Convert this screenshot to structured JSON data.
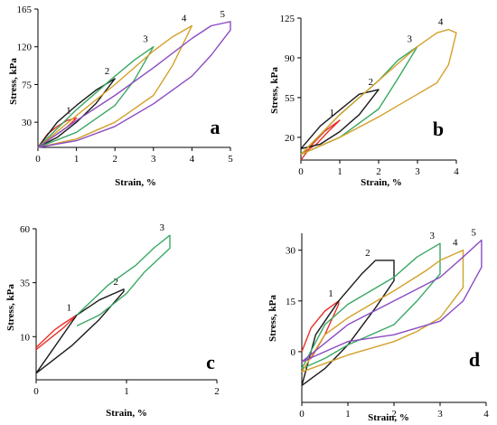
{
  "colors": {
    "1": "#e8312a",
    "2": "#1a1a1a",
    "3": "#3aa863",
    "4": "#d4a02a",
    "5": "#8a4cc2"
  },
  "chart_data": [
    {
      "panel": "a",
      "type": "line",
      "xlabel": "Strain, %",
      "ylabel": "Stress, kPa",
      "xlim": [
        0,
        5
      ],
      "ylim": [
        0,
        165
      ],
      "xticks": [
        "0",
        "1",
        "2",
        "3",
        "4",
        "5"
      ],
      "yticks": [
        "30",
        "75",
        "120",
        "165"
      ],
      "series": [
        {
          "name": "1",
          "load": [
            [
              0,
              0
            ],
            [
              0.25,
              16
            ],
            [
              0.5,
              25
            ],
            [
              0.75,
              32
            ],
            [
              1,
              35
            ]
          ],
          "unload": [
            [
              1,
              35
            ],
            [
              0.75,
              24
            ],
            [
              0.5,
              16
            ],
            [
              0.25,
              8
            ],
            [
              0,
              0
            ]
          ]
        },
        {
          "name": "2",
          "load": [
            [
              0,
              0
            ],
            [
              0.5,
              30
            ],
            [
              1,
              50
            ],
            [
              1.5,
              68
            ],
            [
              2,
              82
            ]
          ],
          "unload": [
            [
              2,
              82
            ],
            [
              1.5,
              52
            ],
            [
              1,
              30
            ],
            [
              0.5,
              12
            ],
            [
              0,
              0
            ]
          ]
        },
        {
          "name": "3",
          "load": [
            [
              0,
              0
            ],
            [
              1,
              45
            ],
            [
              2,
              85
            ],
            [
              2.5,
              104
            ],
            [
              3,
              120
            ]
          ],
          "unload": [
            [
              3,
              120
            ],
            [
              2.5,
              80
            ],
            [
              2,
              50
            ],
            [
              1,
              18
            ],
            [
              0,
              0
            ]
          ]
        },
        {
          "name": "4",
          "load": [
            [
              0,
              0
            ],
            [
              1,
              38
            ],
            [
              2,
              75
            ],
            [
              3,
              115
            ],
            [
              3.5,
              132
            ],
            [
              4,
              145
            ]
          ],
          "unload": [
            [
              4,
              145
            ],
            [
              3.5,
              98
            ],
            [
              3,
              62
            ],
            [
              2,
              30
            ],
            [
              1,
              10
            ],
            [
              0,
              0
            ]
          ]
        },
        {
          "name": "5",
          "load": [
            [
              0,
              0
            ],
            [
              1,
              32
            ],
            [
              2,
              62
            ],
            [
              3,
              95
            ],
            [
              4,
              130
            ],
            [
              4.5,
              145
            ],
            [
              5,
              150
            ]
          ],
          "unload": [
            [
              5,
              140
            ],
            [
              4.5,
              110
            ],
            [
              4,
              85
            ],
            [
              3,
              52
            ],
            [
              2,
              25
            ],
            [
              1,
              8
            ],
            [
              0,
              0
            ]
          ]
        }
      ]
    },
    {
      "panel": "b",
      "type": "line",
      "xlabel": "Strain, %",
      "ylabel": "Stress, kPa",
      "xlim": [
        0,
        4
      ],
      "ylim": [
        0,
        125
      ],
      "xticks": [
        "0",
        "1",
        "2",
        "3",
        "4"
      ],
      "yticks": [
        "20",
        "55",
        "90",
        "125"
      ],
      "series": [
        {
          "name": "1",
          "load": [
            [
              0,
              0
            ],
            [
              0.3,
              14
            ],
            [
              0.6,
              25
            ],
            [
              1,
              35
            ]
          ],
          "unload": [
            [
              1,
              35
            ],
            [
              0.7,
              25
            ],
            [
              0.4,
              14
            ],
            [
              0,
              5
            ]
          ]
        },
        {
          "name": "2",
          "load": [
            [
              0,
              10
            ],
            [
              0.5,
              30
            ],
            [
              1,
              44
            ],
            [
              1.5,
              58
            ],
            [
              2,
              62
            ]
          ],
          "unload": [
            [
              2,
              62
            ],
            [
              1.5,
              40
            ],
            [
              1,
              25
            ],
            [
              0.5,
              14
            ],
            [
              0,
              10
            ]
          ]
        },
        {
          "name": "3",
          "load": [
            [
              0,
              5
            ],
            [
              1,
              40
            ],
            [
              2,
              70
            ],
            [
              2.5,
              88
            ],
            [
              3,
              100
            ]
          ],
          "unload": [
            [
              3,
              100
            ],
            [
              2.5,
              72
            ],
            [
              2,
              45
            ],
            [
              1,
              20
            ],
            [
              0,
              5
            ]
          ]
        },
        {
          "name": "4",
          "load": [
            [
              0,
              5
            ],
            [
              1,
              40
            ],
            [
              2,
              70
            ],
            [
              3,
              100
            ],
            [
              3.5,
              112
            ],
            [
              3.8,
              115
            ],
            [
              4,
              112
            ]
          ],
          "unload": [
            [
              3.8,
              84
            ],
            [
              3.5,
              68
            ],
            [
              3,
              58
            ],
            [
              2.5,
              48
            ],
            [
              2,
              38
            ],
            [
              1,
              20
            ],
            [
              0,
              5
            ]
          ]
        }
      ]
    },
    {
      "panel": "c",
      "type": "line",
      "xlabel": "Strain, %",
      "ylabel": "Stress, kPa",
      "xlim": [
        0,
        2
      ],
      "ylim": [
        -10,
        60
      ],
      "xticks": [
        "0",
        "1",
        "2"
      ],
      "yticks": [
        "10",
        "35",
        "60"
      ],
      "series": [
        {
          "name": "1",
          "load": [
            [
              0,
              5
            ],
            [
              0.1,
              9
            ],
            [
              0.2,
              13
            ],
            [
              0.3,
              16
            ],
            [
              0.45,
              20
            ]
          ],
          "unload": [
            [
              0.45,
              20
            ],
            [
              0.3,
              14
            ],
            [
              0.15,
              9
            ],
            [
              0,
              4
            ]
          ]
        },
        {
          "name": "2",
          "load": [
            [
              0,
              -7
            ],
            [
              0.45,
              20
            ],
            [
              0.7,
              27
            ],
            [
              0.97,
              32
            ]
          ],
          "unload": [
            [
              0.97,
              31
            ],
            [
              0.7,
              18
            ],
            [
              0.4,
              6
            ],
            [
              0,
              -7
            ]
          ]
        },
        {
          "name": "3",
          "load": [
            [
              0.45,
              20
            ],
            [
              0.8,
              34
            ],
            [
              1.1,
              43
            ],
            [
              1.3,
              51
            ],
            [
              1.48,
              57
            ]
          ],
          "unload": [
            [
              1.48,
              51
            ],
            [
              1.2,
              40
            ],
            [
              1,
              30
            ],
            [
              0.7,
              20
            ],
            [
              0.45,
              15
            ]
          ]
        }
      ]
    },
    {
      "panel": "d",
      "type": "line",
      "xlabel": "Strain, %",
      "ylabel": "Stress, kPa",
      "xlim": [
        0,
        4
      ],
      "ylim": [
        -15,
        35
      ],
      "xticks": [
        "0",
        "1",
        "2",
        "3",
        "4"
      ],
      "yticks": [
        "0",
        "15",
        "30"
      ],
      "series": [
        {
          "name": "1",
          "load": [
            [
              0,
              0
            ],
            [
              0.2,
              7
            ],
            [
              0.5,
              12
            ],
            [
              0.8,
              15
            ]
          ],
          "unload": [
            [
              0.8,
              14
            ],
            [
              0.5,
              5
            ],
            [
              0.2,
              -2
            ],
            [
              0,
              -3
            ]
          ]
        },
        {
          "name": "2",
          "load": [
            [
              0,
              -10
            ],
            [
              0.3,
              5
            ],
            [
              0.8,
              15
            ],
            [
              1.3,
              23
            ],
            [
              1.6,
              27
            ],
            [
              2,
              27
            ]
          ],
          "unload": [
            [
              2,
              21
            ],
            [
              1.6,
              13
            ],
            [
              1,
              2
            ],
            [
              0.5,
              -5
            ],
            [
              0,
              -10
            ]
          ]
        },
        {
          "name": "3",
          "load": [
            [
              0,
              -5
            ],
            [
              0.5,
              8
            ],
            [
              1,
              14
            ],
            [
              2,
              22
            ],
            [
              2.5,
              28
            ],
            [
              3,
              32
            ]
          ],
          "unload": [
            [
              3,
              23
            ],
            [
              2.5,
              15
            ],
            [
              2,
              8
            ],
            [
              1,
              2
            ],
            [
              0.5,
              -2
            ],
            [
              0,
              -5
            ]
          ]
        },
        {
          "name": "4",
          "load": [
            [
              0,
              -6
            ],
            [
              0.5,
              5
            ],
            [
              1,
              10
            ],
            [
              2,
              18
            ],
            [
              2.7,
              24
            ],
            [
              3,
              27
            ],
            [
              3.5,
              30
            ]
          ],
          "unload": [
            [
              3.5,
              19
            ],
            [
              3,
              10
            ],
            [
              2.5,
              6
            ],
            [
              2,
              3
            ],
            [
              1,
              -1
            ],
            [
              0,
              -6
            ]
          ]
        },
        {
          "name": "5",
          "load": [
            [
              0,
              -3
            ],
            [
              1,
              8
            ],
            [
              2,
              15
            ],
            [
              3,
              22
            ],
            [
              3.5,
              28
            ],
            [
              3.9,
              33
            ]
          ],
          "unload": [
            [
              3.9,
              25
            ],
            [
              3.5,
              15
            ],
            [
              3,
              9
            ],
            [
              2,
              5
            ],
            [
              1,
              3
            ],
            [
              0,
              -3
            ]
          ]
        }
      ]
    }
  ]
}
